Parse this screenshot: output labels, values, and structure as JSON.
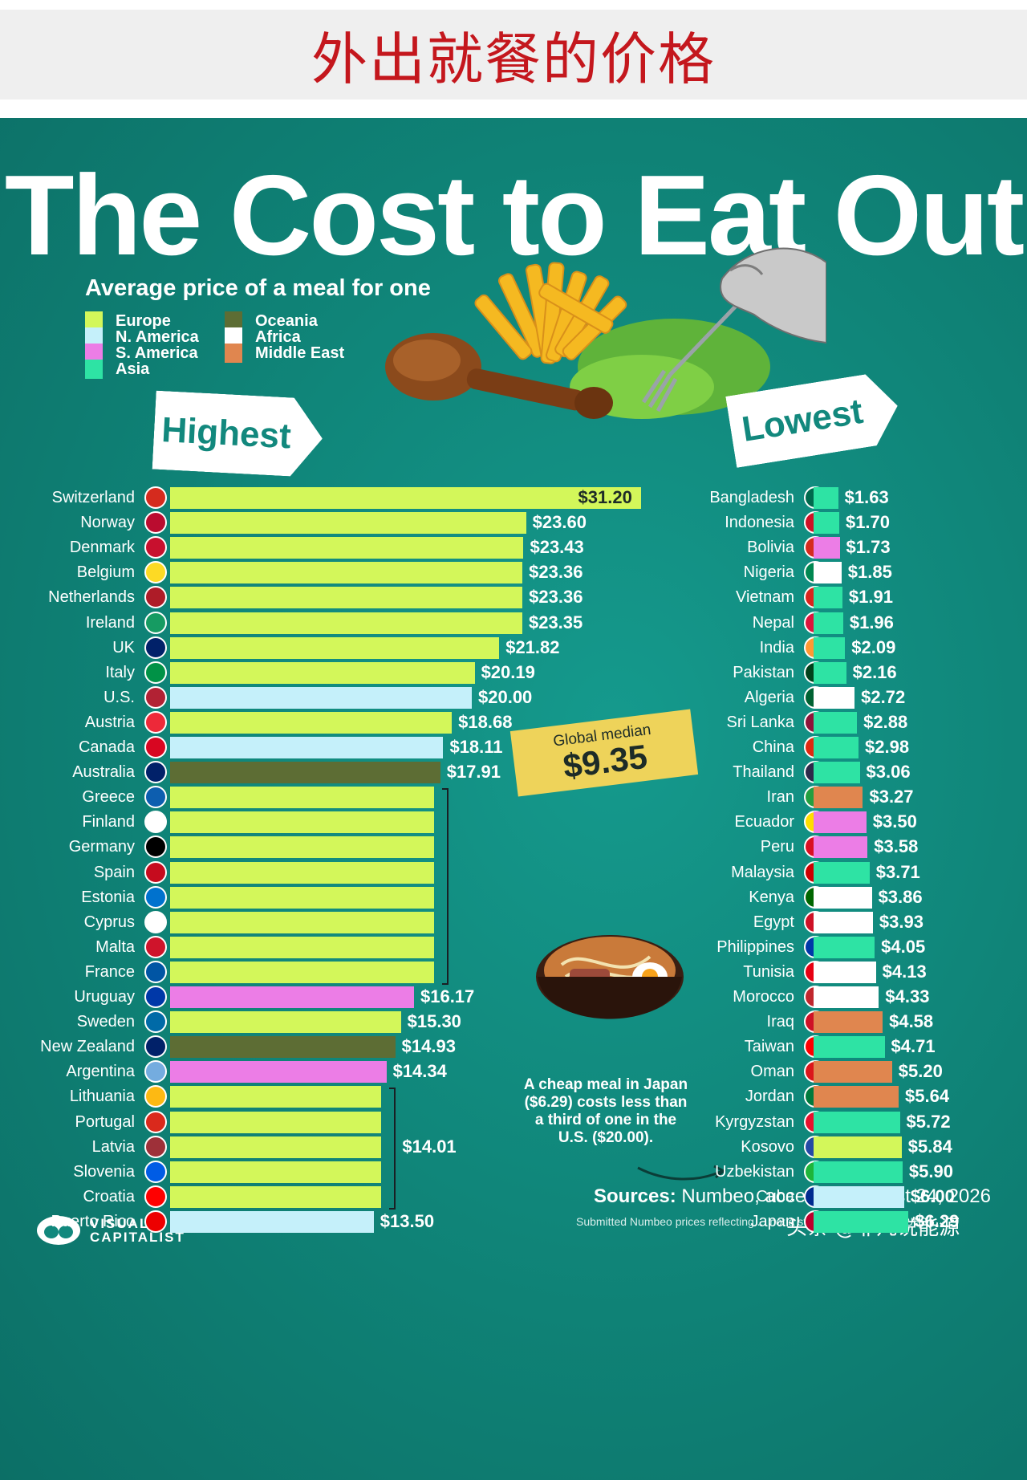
{
  "header": {
    "title_cn": "外出就餐的价格"
  },
  "title": "The Cost to Eat Out",
  "subtitle": "Average price of a meal for one",
  "legend": [
    {
      "label": "Europe",
      "color": "#d3f75a"
    },
    {
      "label": "N. America",
      "color": "#c5f0fa"
    },
    {
      "label": "S. America",
      "color": "#ec7de6"
    },
    {
      "label": "Asia",
      "color": "#2ee3a4"
    },
    {
      "label": "Oceania",
      "color": "#5d6d34"
    },
    {
      "label": "Africa",
      "color": "#ffffff"
    },
    {
      "label": "Middle East",
      "color": "#e0864f"
    }
  ],
  "highest_tag": "Highest",
  "lowest_tag": "Lowest",
  "median": {
    "label": "Global median",
    "value": "$9.35"
  },
  "note": "A cheap meal in Japan ($6.29) costs less than a third of one in the U.S. ($20.00).",
  "sources": {
    "label": "Sources:",
    "text": "Numbeo, accessed August 24, 2026",
    "note": "Submitted Numbeo prices reflecting ... not a standardized basket (USD)."
  },
  "logo": {
    "line1": "VISUAL",
    "line2": "CAPITALIST"
  },
  "watermark": "头条 @非凡说能源",
  "chart_data": [
    {
      "type": "bar",
      "orientation": "horizontal",
      "title": "Highest",
      "categories": [
        "Switzerland",
        "Norway",
        "Denmark",
        "Belgium",
        "Netherlands",
        "Ireland",
        "UK",
        "Italy",
        "U.S.",
        "Austria",
        "Canada",
        "Australia",
        "Greece",
        "Finland",
        "Germany",
        "Spain",
        "Estonia",
        "Cyprus",
        "Malta",
        "France",
        "Uruguay",
        "Sweden",
        "New Zealand",
        "Argentina",
        "Lithuania",
        "Portugal",
        "Latvia",
        "Slovenia",
        "Croatia",
        "Puerto Rico"
      ],
      "values": [
        31.2,
        23.6,
        23.43,
        23.36,
        23.36,
        23.35,
        21.82,
        20.19,
        20.0,
        18.68,
        18.11,
        17.91,
        17.5,
        17.5,
        17.5,
        17.5,
        17.5,
        17.5,
        17.5,
        17.5,
        16.17,
        15.3,
        14.93,
        14.34,
        14.01,
        14.01,
        14.01,
        14.01,
        14.01,
        13.5
      ],
      "labels": [
        "$31.20",
        "$23.60",
        "$23.43",
        "$23.36",
        "$23.36",
        "$23.35",
        "$21.82",
        "$20.19",
        "$20.00",
        "$18.68",
        "$18.11",
        "$17.91",
        "",
        "",
        "",
        "",
        "",
        "",
        "",
        "",
        "$16.17",
        "$15.30",
        "$14.93",
        "$14.34",
        "",
        "",
        "",
        "",
        "",
        "$13.50"
      ],
      "regions": [
        "Europe",
        "Europe",
        "Europe",
        "Europe",
        "Europe",
        "Europe",
        "Europe",
        "Europe",
        "N. America",
        "Europe",
        "N. America",
        "Oceania",
        "Europe",
        "Europe",
        "Europe",
        "Europe",
        "Europe",
        "Europe",
        "Europe",
        "Europe",
        "S. America",
        "Europe",
        "Oceania",
        "S. America",
        "Europe",
        "Europe",
        "Europe",
        "Europe",
        "Europe",
        "N. America"
      ],
      "groups": [
        {
          "from": 12,
          "to": 19,
          "label": ""
        },
        {
          "from": 24,
          "to": 28,
          "label": "$14.01"
        }
      ]
    },
    {
      "type": "bar",
      "orientation": "horizontal",
      "title": "Lowest",
      "categories": [
        "Bangladesh",
        "Indonesia",
        "Bolivia",
        "Nigeria",
        "Vietnam",
        "Nepal",
        "India",
        "Pakistan",
        "Algeria",
        "Sri Lanka",
        "China",
        "Thailand",
        "Iran",
        "Ecuador",
        "Peru",
        "Malaysia",
        "Kenya",
        "Egypt",
        "Philippines",
        "Tunisia",
        "Morocco",
        "Iraq",
        "Taiwan",
        "Oman",
        "Jordan",
        "Kyrgyzstan",
        "Kosovo",
        "Uzbekistan",
        "Cuba",
        "Japan"
      ],
      "values": [
        1.63,
        1.7,
        1.73,
        1.85,
        1.91,
        1.96,
        2.09,
        2.16,
        2.72,
        2.88,
        2.98,
        3.06,
        3.27,
        3.5,
        3.58,
        3.71,
        3.86,
        3.93,
        4.05,
        4.13,
        4.33,
        4.58,
        4.71,
        5.2,
        5.64,
        5.72,
        5.84,
        5.9,
        6.0,
        6.29
      ],
      "labels": [
        "$1.63",
        "$1.70",
        "$1.73",
        "$1.85",
        "$1.91",
        "$1.96",
        "$2.09",
        "$2.16",
        "$2.72",
        "$2.88",
        "$2.98",
        "$3.06",
        "$3.27",
        "$3.50",
        "$3.58",
        "$3.71",
        "$3.86",
        "$3.93",
        "$4.05",
        "$4.13",
        "$4.33",
        "$4.58",
        "$4.71",
        "$5.20",
        "$5.64",
        "$5.72",
        "$5.84",
        "$5.90",
        "$6.00",
        "$6.29"
      ],
      "regions": [
        "Asia",
        "Asia",
        "S. America",
        "Africa",
        "Asia",
        "Asia",
        "Asia",
        "Asia",
        "Africa",
        "Asia",
        "Asia",
        "Asia",
        "Middle East",
        "S. America",
        "S. America",
        "Asia",
        "Africa",
        "Africa",
        "Asia",
        "Africa",
        "Africa",
        "Middle East",
        "Asia",
        "Middle East",
        "Middle East",
        "Asia",
        "Europe",
        "Asia",
        "N. America",
        "Asia"
      ]
    }
  ],
  "flags": {
    "Switzerland": "#d52b1e",
    "Norway": "#ba0c2f",
    "Denmark": "#c8102e",
    "Belgium": "#fdda24",
    "Netherlands": "#ae1c28",
    "Ireland": "#169b62",
    "UK": "#012169",
    "Italy": "#009246",
    "U.S.": "#b22234",
    "Austria": "#ed2939",
    "Canada": "#d80621",
    "Australia": "#012169",
    "Greece": "#0d5eaf",
    "Finland": "#ffffff",
    "Germany": "#000000",
    "Spain": "#c60b1e",
    "Estonia": "#0072ce",
    "Cyprus": "#ffffff",
    "Malta": "#cf142b",
    "France": "#0055a4",
    "Uruguay": "#0038a8",
    "Sweden": "#006aa7",
    "New Zealand": "#012169",
    "Argentina": "#74acdf",
    "Lithuania": "#fdb913",
    "Portugal": "#da291c",
    "Latvia": "#9e3039",
    "Slovenia": "#005ce5",
    "Croatia": "#ff0000",
    "Puerto Rico": "#ed0000",
    "Bangladesh": "#006a4e",
    "Indonesia": "#ce1126",
    "Bolivia": "#d52b1e",
    "Nigeria": "#008751",
    "Vietnam": "#da251d",
    "Nepal": "#dc143c",
    "India": "#ff9933",
    "Pakistan": "#01411c",
    "Algeria": "#006233",
    "Sri Lanka": "#8d153a",
    "China": "#de2910",
    "Thailand": "#2d2a4a",
    "Iran": "#239f40",
    "Ecuador": "#ffdd00",
    "Peru": "#d91023",
    "Malaysia": "#cc0001",
    "Kenya": "#006600",
    "Egypt": "#ce1126",
    "Philippines": "#0038a8",
    "Tunisia": "#e70013",
    "Morocco": "#c1272d",
    "Iraq": "#ce1126",
    "Taiwan": "#fe0000",
    "Oman": "#db161b",
    "Jordan": "#007a3d",
    "Kyrgyzstan": "#e8112d",
    "Kosovo": "#244aa5",
    "Uzbekistan": "#1eb53a",
    "Cuba": "#002a8f",
    "Japan": "#bc002d"
  }
}
